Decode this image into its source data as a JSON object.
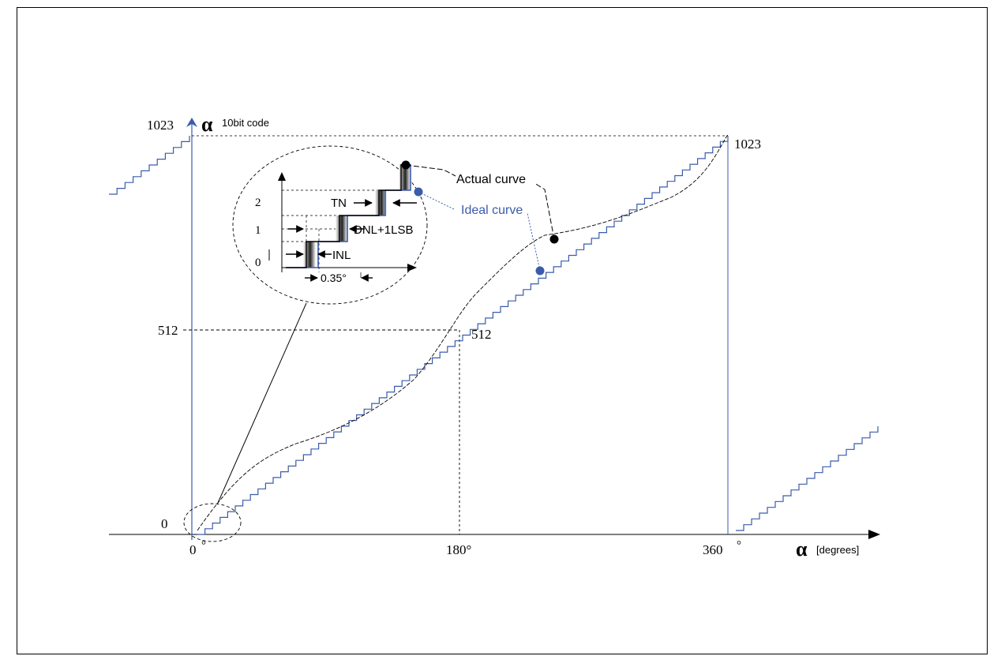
{
  "y_axis": {
    "symbol": "α",
    "unit": "10bit code",
    "ticks": {
      "min": "0",
      "mid": "512",
      "max": "1023"
    }
  },
  "x_axis": {
    "symbol": "α",
    "unit": "[degrees]",
    "ticks": {
      "start": "0",
      "start_deg": "°",
      "mid": "180°",
      "end": "360",
      "end_deg": "°"
    }
  },
  "point_labels": {
    "mid": "512",
    "max": "1023"
  },
  "legend": {
    "actual": "Actual curve",
    "ideal": "Ideal curve"
  },
  "inset": {
    "codes": [
      "0",
      "1",
      "2"
    ],
    "tn": "TN",
    "dnl": "DNL+1LSB",
    "inl": "INL",
    "step": "0.35°"
  },
  "colors": {
    "ideal": "#3b5cab",
    "actual": "#000000",
    "axis_blue": "#3b5cab"
  }
}
